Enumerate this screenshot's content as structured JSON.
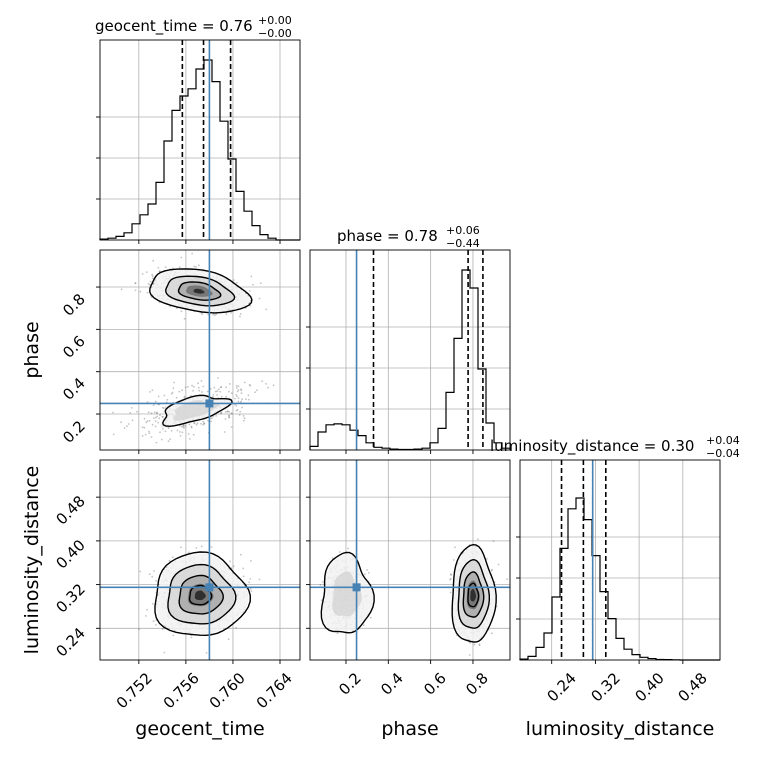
{
  "chart_data": {
    "type": "corner",
    "parameters": [
      "geocent_time",
      "phase",
      "luminosity_distance"
    ],
    "truths": {
      "geocent_time": 0.758,
      "phase": 0.25,
      "luminosity_distance": 0.315
    },
    "titles": [
      {
        "param": "geocent_time",
        "label": "geocent_time = 0.76",
        "sup": "+0.00",
        "sub": "−0.00"
      },
      {
        "param": "phase",
        "label": "phase = 0.78",
        "sup": "+0.06",
        "sub": "−0.44"
      },
      {
        "param": "luminosity_distance",
        "label": "luminosity_distance = 0.30",
        "sup": "+0.04",
        "sub": "−0.04"
      }
    ],
    "axis_labels": {
      "x": [
        "geocent_time",
        "phase",
        "luminosity_distance"
      ],
      "y": [
        "phase",
        "luminosity_distance"
      ]
    },
    "ticks": {
      "geocent_time": [
        "0.752",
        "0.756",
        "0.760",
        "0.764"
      ],
      "phase": [
        "0.2",
        "0.4",
        "0.6",
        "0.8"
      ],
      "luminosity_distance": [
        "0.24",
        "0.32",
        "0.40",
        "0.48"
      ]
    },
    "ranges": {
      "geocent_time": [
        0.7487,
        0.7657
      ],
      "phase": [
        0.03,
        0.975
      ],
      "luminosity_distance": [
        0.182,
        0.548
      ]
    },
    "quantiles": {
      "geocent_time": [
        0.7557,
        0.7575,
        0.7598
      ],
      "phase": [
        0.33,
        0.777,
        0.847
      ],
      "luminosity_distance": [
        0.258,
        0.298,
        0.339
      ]
    },
    "histograms": {
      "geocent_time": [
        0.005,
        0.01,
        0.02,
        0.04,
        0.09,
        0.14,
        0.2,
        0.32,
        0.55,
        0.72,
        0.8,
        0.84,
        0.95,
        1.0,
        0.88,
        0.66,
        0.45,
        0.27,
        0.16,
        0.08,
        0.03,
        0.01,
        0,
        0,
        0
      ],
      "phase": [
        0.02,
        0.1,
        0.14,
        0.145,
        0.14,
        0.11,
        0.08,
        0.04,
        0.015,
        0.01,
        0.005,
        0.003,
        0.003,
        0.005,
        0.01,
        0.04,
        0.12,
        0.32,
        0.62,
        1.0,
        0.9,
        0.45,
        0.15,
        0.04,
        0.01
      ],
      "luminosity_distance": [
        0.005,
        0.02,
        0.07,
        0.15,
        0.35,
        0.62,
        0.84,
        0.9,
        0.78,
        0.58,
        0.38,
        0.23,
        0.12,
        0.06,
        0.03,
        0.015,
        0.008,
        0.003,
        0.002,
        0.001,
        0,
        0,
        0,
        0,
        0
      ]
    },
    "grid": true,
    "truth_color": "#4682b4"
  }
}
